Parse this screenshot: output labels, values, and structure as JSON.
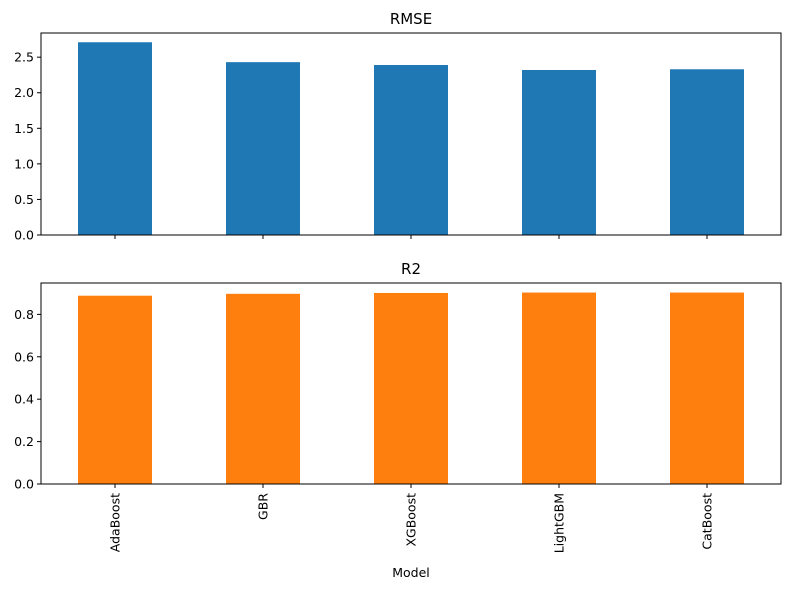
{
  "chart_data": [
    {
      "type": "bar",
      "title": "RMSE",
      "categories": [
        "AdaBoost",
        "GBR",
        "XGBoost",
        "LightGBM",
        "CatBoost"
      ],
      "values": [
        2.71,
        2.43,
        2.39,
        2.32,
        2.33
      ],
      "ylim": [
        0,
        2.84
      ],
      "yticks": [
        "0.0",
        "0.5",
        "1.0",
        "1.5",
        "2.0",
        "2.5"
      ],
      "ytick_values": [
        0,
        0.5,
        1.0,
        1.5,
        2.0,
        2.5
      ],
      "show_xtick_labels": false,
      "color": "#1f77b4",
      "xlabel": "",
      "grid": false
    },
    {
      "type": "bar",
      "title": "R2",
      "categories": [
        "AdaBoost",
        "GBR",
        "XGBoost",
        "LightGBM",
        "CatBoost"
      ],
      "values": [
        0.888,
        0.897,
        0.901,
        0.903,
        0.903
      ],
      "ylim": [
        0,
        0.948
      ],
      "yticks": [
        "0.0",
        "0.2",
        "0.4",
        "0.6",
        "0.8"
      ],
      "ytick_values": [
        0,
        0.2,
        0.4,
        0.6,
        0.8
      ],
      "show_xtick_labels": true,
      "color": "#ff7f0e",
      "xlabel": "Model",
      "grid": false
    }
  ]
}
